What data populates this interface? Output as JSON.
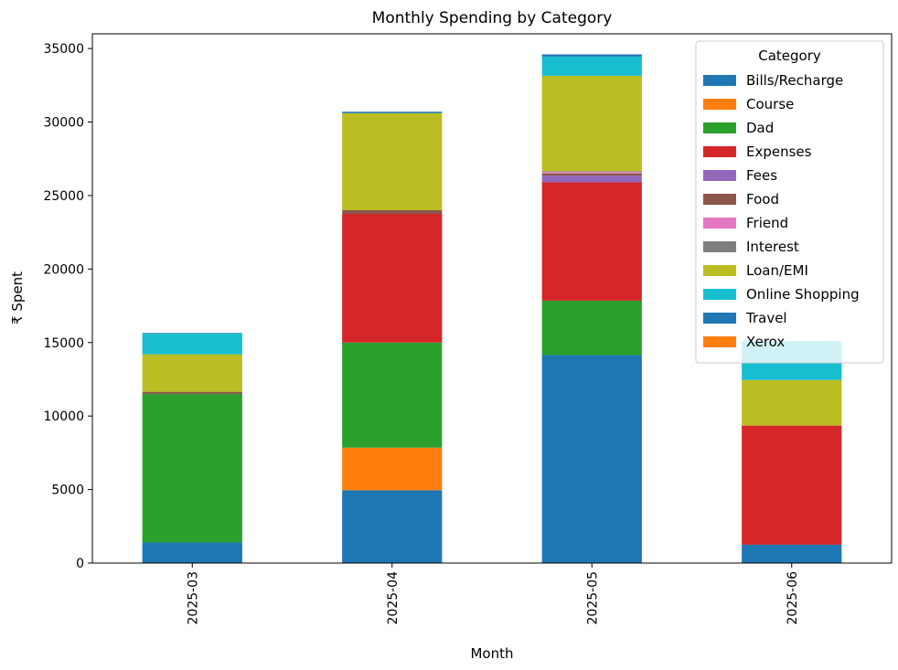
{
  "chart_data": {
    "type": "bar",
    "stacked": true,
    "title": "Monthly Spending by Category",
    "xlabel": "Month",
    "ylabel": "₹ Spent",
    "ylim": [
      0,
      36000
    ],
    "yticks": [
      0,
      5000,
      10000,
      15000,
      20000,
      25000,
      30000,
      35000
    ],
    "categories": [
      "2025-03",
      "2025-04",
      "2025-05",
      "2025-06"
    ],
    "grid": false,
    "legend": {
      "title": "Category",
      "placement": "top-right"
    },
    "series": [
      {
        "name": "Bills/Recharge",
        "color": "#1f77b4",
        "values": [
          1400,
          4950,
          14150,
          1250
        ]
      },
      {
        "name": "Course",
        "color": "#ff7f0e",
        "values": [
          0,
          2900,
          0,
          0
        ]
      },
      {
        "name": "Dad",
        "color": "#2ca02c",
        "values": [
          10100,
          7150,
          3700,
          0
        ]
      },
      {
        "name": "Expenses",
        "color": "#d62728",
        "values": [
          0,
          8750,
          8050,
          8100
        ]
      },
      {
        "name": "Fees",
        "color": "#9467bd",
        "values": [
          0,
          0,
          450,
          0
        ]
      },
      {
        "name": "Food",
        "color": "#8c564b",
        "values": [
          150,
          250,
          150,
          0
        ]
      },
      {
        "name": "Friend",
        "color": "#e377c2",
        "values": [
          0,
          0,
          100,
          0
        ]
      },
      {
        "name": "Interest",
        "color": "#7f7f7f",
        "values": [
          0,
          0,
          50,
          0
        ]
      },
      {
        "name": "Loan/EMI",
        "color": "#bcbd22",
        "values": [
          2550,
          6600,
          6500,
          3100
        ]
      },
      {
        "name": "Online Shopping",
        "color": "#17becf",
        "values": [
          1400,
          0,
          1300,
          2650
        ]
      },
      {
        "name": "Travel",
        "color": "#1f77b4",
        "values": [
          50,
          100,
          150,
          0
        ]
      },
      {
        "name": "Xerox",
        "color": "#ff7f0e",
        "values": [
          0,
          0,
          0,
          0
        ]
      }
    ]
  }
}
